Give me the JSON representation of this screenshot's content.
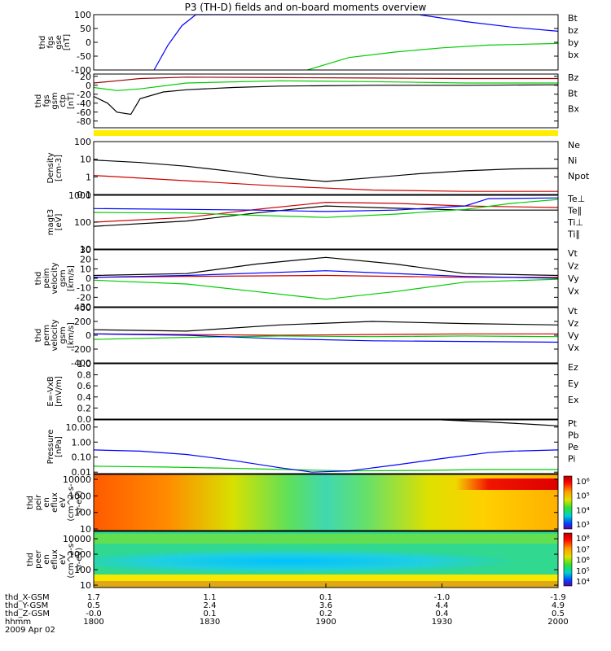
{
  "title": "P3 (TH-D) fields and on-board moments overview",
  "chart_data": [
    {
      "type": "line",
      "name": "fgs-gse",
      "ylabel_lines": [
        "thd",
        "fgs",
        "gse",
        "[nT]"
      ],
      "yticks": [
        "100",
        "50",
        "0",
        "-50",
        "-100"
      ],
      "ytick_values": [
        100,
        50,
        0,
        -50,
        -100
      ],
      "ylim": [
        -100,
        100
      ],
      "series": [
        {
          "name": "Bt",
          "color": "#000000",
          "x": [],
          "y": []
        },
        {
          "name": "bz",
          "color": "#cc0000",
          "x": [],
          "y": []
        },
        {
          "name": "by",
          "color": "#00cc00",
          "x": [
            0.46,
            0.55,
            0.65,
            0.75,
            0.85,
            1.0
          ],
          "y": [
            -100,
            -55,
            -35,
            -20,
            -10,
            -4
          ]
        },
        {
          "name": "bx",
          "color": "#0000ff",
          "x": [
            0.13,
            0.16,
            0.19,
            0.22,
            0.24,
            0.7,
            0.8,
            0.9,
            1.0
          ],
          "y": [
            -100,
            -10,
            60,
            100,
            100,
            100,
            75,
            55,
            40
          ]
        }
      ]
    },
    {
      "type": "line",
      "name": "fgs-gsm-ctp",
      "ylabel_lines": [
        "thd",
        "fgs",
        "gsm",
        "ctp",
        "[nT]"
      ],
      "yticks": [
        "20",
        "0",
        "-20",
        "-40",
        "-60",
        "-80"
      ],
      "ytick_values": [
        20,
        0,
        -20,
        -40,
        -60,
        -80
      ],
      "ylim": [
        -95,
        25
      ],
      "series": [
        {
          "name": "Bz",
          "color": "#990000",
          "x": [
            0,
            0.05,
            0.1,
            0.2,
            0.4,
            0.6,
            0.8,
            1.0
          ],
          "y": [
            5,
            10,
            15,
            18,
            17,
            16,
            15,
            15
          ]
        },
        {
          "name": "Bt",
          "color": "#000000",
          "x": [
            0,
            0.03,
            0.05,
            0.08,
            0.1,
            0.15,
            0.2,
            0.3,
            0.4,
            0.6,
            0.8,
            1.0
          ],
          "y": [
            -25,
            -40,
            -60,
            -65,
            -30,
            -15,
            -10,
            -5,
            -2,
            0,
            0,
            1
          ]
        },
        {
          "name": "Bx",
          "color": "#00cc00",
          "x": [
            0,
            0.05,
            0.1,
            0.2,
            0.4,
            0.6,
            0.8,
            1.0
          ],
          "y": [
            -5,
            -12,
            -8,
            5,
            10,
            8,
            5,
            5
          ]
        }
      ]
    },
    {
      "type": "line",
      "name": "density",
      "scale": "log",
      "ylabel_lines": [
        "Density",
        "[cm-3]"
      ],
      "yticks": [
        "100",
        "10",
        "1",
        "0.1"
      ],
      "ytick_values": [
        100,
        10,
        1,
        0.1
      ],
      "ylim": [
        0.1,
        100
      ],
      "series": [
        {
          "name": "Ne",
          "color": "#cc0000",
          "x": [
            0,
            0.2,
            0.4,
            0.6,
            0.8,
            1.0
          ],
          "y": [
            1.2,
            0.6,
            0.3,
            0.18,
            0.15,
            0.15
          ]
        },
        {
          "name": "Ni",
          "color": "#000000",
          "x": [
            0,
            0.1,
            0.2,
            0.3,
            0.4,
            0.5,
            0.6,
            0.7,
            0.8,
            0.9,
            1.0
          ],
          "y": [
            9,
            6.5,
            4,
            2,
            0.9,
            0.55,
            0.9,
            1.5,
            2.2,
            2.8,
            3
          ]
        },
        {
          "name": "Npot",
          "color": "#0000ff",
          "x": [],
          "y": []
        }
      ]
    },
    {
      "type": "line",
      "name": "temperature",
      "scale": "log",
      "ylabel_lines": [
        "magt3",
        "[eV]"
      ],
      "yticks": [
        "1000",
        "100",
        "10"
      ],
      "ytick_values": [
        1000,
        100,
        10
      ],
      "ylim": [
        10,
        1000
      ],
      "series": [
        {
          "name": "Te⊥",
          "color": "#cc0000",
          "x": [
            0,
            0.2,
            0.35,
            0.5,
            0.65,
            0.8,
            1.0
          ],
          "y": [
            100,
            150,
            300,
            550,
            500,
            400,
            350
          ]
        },
        {
          "name": "Te∥",
          "color": "#000000",
          "x": [
            0,
            0.2,
            0.35,
            0.5,
            0.65,
            0.8,
            1.0
          ],
          "y": [
            70,
            110,
            220,
            400,
            330,
            280,
            280
          ]
        },
        {
          "name": "Ti⊥",
          "color": "#0000ff",
          "x": [
            0,
            0.2,
            0.35,
            0.5,
            0.65,
            0.8,
            0.85,
            1.0
          ],
          "y": [
            320,
            300,
            280,
            250,
            280,
            400,
            750,
            800
          ]
        },
        {
          "name": "Ti∥",
          "color": "#00cc00",
          "x": [
            0,
            0.2,
            0.35,
            0.5,
            0.65,
            0.8,
            0.9,
            1.0
          ],
          "y": [
            230,
            220,
            180,
            150,
            200,
            300,
            500,
            700
          ]
        }
      ]
    },
    {
      "type": "line",
      "name": "peim-velocity",
      "ylabel_lines": [
        "thd",
        "peim",
        "velocity",
        "gsm",
        "[km/s]"
      ],
      "yticks": [
        "30",
        "20",
        "10",
        "0",
        "-10",
        "-20",
        "-30"
      ],
      "ytick_values": [
        30,
        20,
        10,
        0,
        -10,
        -20,
        -30
      ],
      "ylim": [
        -30,
        30
      ],
      "series": [
        {
          "name": "Vt",
          "color": "#000000",
          "x": [
            0,
            0.2,
            0.35,
            0.5,
            0.65,
            0.8,
            1.0
          ],
          "y": [
            3,
            5,
            15,
            22,
            15,
            5,
            3
          ]
        },
        {
          "name": "Vz",
          "color": "#cc0000",
          "x": [
            0,
            0.2,
            0.5,
            0.8,
            1.0
          ],
          "y": [
            1,
            2,
            3,
            1,
            1
          ]
        },
        {
          "name": "Vy",
          "color": "#00cc00",
          "x": [
            0,
            0.2,
            0.35,
            0.5,
            0.65,
            0.8,
            1.0
          ],
          "y": [
            -2,
            -6,
            -14,
            -22,
            -14,
            -4,
            -1
          ]
        },
        {
          "name": "Vx",
          "color": "#0000ff",
          "x": [
            0,
            0.2,
            0.5,
            0.8,
            1.0
          ],
          "y": [
            1,
            3,
            8,
            2,
            0
          ]
        }
      ]
    },
    {
      "type": "line",
      "name": "perm-velocity",
      "ylabel_lines": [
        "thd",
        "perm",
        "velocity",
        "gsm",
        "[km/s]"
      ],
      "yticks": [
        "400",
        "200",
        "0",
        "-200",
        "-400"
      ],
      "ytick_values": [
        400,
        200,
        0,
        -200,
        -400
      ],
      "ylim": [
        -400,
        400
      ],
      "series": [
        {
          "name": "Vt",
          "color": "#000000",
          "x": [
            0,
            0.2,
            0.4,
            0.6,
            0.8,
            1.0
          ],
          "y": [
            80,
            60,
            150,
            200,
            170,
            150
          ]
        },
        {
          "name": "Vz",
          "color": "#cc0000",
          "x": [
            0,
            0.2,
            0.4,
            0.6,
            0.8,
            1.0
          ],
          "y": [
            20,
            10,
            0,
            10,
            20,
            20
          ]
        },
        {
          "name": "Vy",
          "color": "#00cc00",
          "x": [
            0,
            0.2,
            0.4,
            0.6,
            0.8,
            1.0
          ],
          "y": [
            -60,
            -30,
            -10,
            -20,
            -10,
            -20
          ]
        },
        {
          "name": "Vx",
          "color": "#0000ff",
          "x": [
            0,
            0.2,
            0.4,
            0.6,
            0.8,
            1.0
          ],
          "y": [
            20,
            0,
            -50,
            -80,
            -90,
            -100
          ]
        }
      ]
    },
    {
      "type": "line",
      "name": "efield",
      "ylabel_lines": [
        "E=-VxB",
        "[mV/m]"
      ],
      "yticks": [
        "1.0",
        "0.8",
        "0.6",
        "0.4",
        "0.2",
        "0.0"
      ],
      "ytick_values": [
        1.0,
        0.8,
        0.6,
        0.4,
        0.2,
        0.0
      ],
      "ylim": [
        0,
        1
      ],
      "series": [
        {
          "name": "Ez",
          "color": "#cc0000",
          "x": [],
          "y": []
        },
        {
          "name": "Ey",
          "color": "#00cc00",
          "x": [],
          "y": []
        },
        {
          "name": "Ex",
          "color": "#0000ff",
          "x": [],
          "y": []
        }
      ]
    },
    {
      "type": "line",
      "name": "pressure",
      "scale": "log",
      "ylabel_lines": [
        "Pressure",
        "[nPa]"
      ],
      "yticks": [
        "10.00",
        "1.00",
        "0.10",
        "0.01"
      ],
      "ytick_values": [
        10,
        1,
        0.1,
        0.01
      ],
      "ylim": [
        0.008,
        30
      ],
      "series": [
        {
          "name": "Pt",
          "color": "#000000",
          "x": [
            0.75,
            0.85,
            0.95,
            1.0
          ],
          "y": [
            30,
            22,
            15,
            12
          ]
        },
        {
          "name": "Pb",
          "color": "#cc0000",
          "x": [],
          "y": []
        },
        {
          "name": "Pe",
          "color": "#00cc00",
          "x": [
            0,
            0.15,
            0.3,
            0.45,
            0.55,
            0.7,
            0.85,
            1.0
          ],
          "y": [
            0.025,
            0.022,
            0.018,
            0.014,
            0.012,
            0.013,
            0.015,
            0.015
          ]
        },
        {
          "name": "Pi",
          "color": "#0000ff",
          "x": [
            0,
            0.1,
            0.2,
            0.3,
            0.4,
            0.47,
            0.55,
            0.65,
            0.75,
            0.85,
            0.9,
            1.0
          ],
          "y": [
            0.3,
            0.25,
            0.15,
            0.06,
            0.02,
            0.01,
            0.012,
            0.03,
            0.08,
            0.2,
            0.25,
            0.3
          ]
        }
      ]
    },
    {
      "type": "heatmap",
      "name": "peir-en-eflux",
      "scale": "log",
      "ylabel_lines": [
        "thd",
        "peir",
        "en",
        "eflux",
        "eV",
        "(cm^2-s-",
        "sr-eV)"
      ],
      "yticks": [
        "10000",
        "1000",
        "100",
        "10"
      ],
      "ytick_values": [
        10000,
        1000,
        100,
        10
      ],
      "ylim": [
        8,
        20000
      ],
      "colorbar_labels": [
        "10⁶",
        "10⁵",
        "10⁴",
        "10³"
      ]
    },
    {
      "type": "heatmap",
      "name": "peer-en-eflux",
      "scale": "log",
      "ylabel_lines": [
        "thd",
        "peer",
        "en",
        "eflux",
        "eV",
        "(cm^2-s-",
        "sr-eV)"
      ],
      "yticks": [
        "10000",
        "1000",
        "100",
        "10"
      ],
      "ytick_values": [
        10000,
        1000,
        100,
        10
      ],
      "ylim": [
        7,
        30000
      ],
      "colorbar_labels": [
        "10⁸",
        "10⁷",
        "10⁶",
        "10⁵",
        "10⁴"
      ]
    }
  ],
  "xaxis": {
    "row_labels": [
      "thd_X-GSM",
      "thd_Y-GSM",
      "thd_Z-GSM",
      "hhmm",
      "2009 Apr 02"
    ],
    "columns": [
      [
        "1.7",
        "0.5",
        "-0.0",
        "1800"
      ],
      [
        "1.1",
        "2.4",
        "0.1",
        "1830"
      ],
      [
        "0.1",
        "3.6",
        "0.2",
        "1900"
      ],
      [
        "-1.0",
        "4.4",
        "0.4",
        "1930"
      ],
      [
        "-1.9",
        "4.9",
        "0.5",
        "2000"
      ]
    ]
  }
}
